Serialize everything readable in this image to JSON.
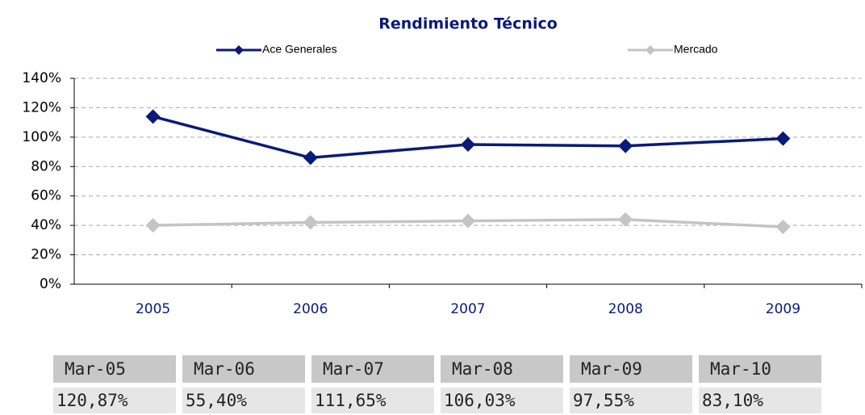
{
  "chart_data": {
    "type": "line",
    "title": "Rendimiento Técnico",
    "categories": [
      "2005",
      "2006",
      "2007",
      "2008",
      "2009"
    ],
    "series": [
      {
        "name": "Ace Generales",
        "color": "#0a1a7a",
        "values": [
          114,
          86,
          95,
          94,
          99
        ]
      },
      {
        "name": "Mercado",
        "color": "#c4c4c4",
        "values": [
          40,
          42,
          43,
          44,
          39
        ]
      }
    ],
    "ylim": [
      0,
      140
    ],
    "yticks": [
      {
        "value": 0,
        "label": "0%"
      },
      {
        "value": 20,
        "label": "20%"
      },
      {
        "value": 40,
        "label": "40%"
      },
      {
        "value": 60,
        "label": "60%"
      },
      {
        "value": 80,
        "label": "80%"
      },
      {
        "value": 100,
        "label": "100%"
      },
      {
        "value": 120,
        "label": "120%"
      },
      {
        "value": 140,
        "label": "140%"
      }
    ],
    "grid": true,
    "legend": "top"
  },
  "table": {
    "header": [
      "Mar-05",
      "Mar-06",
      "Mar-07",
      "Mar-08",
      "Mar-09",
      "Mar-10"
    ],
    "rows": [
      [
        "120,87%",
        "55,40%",
        "111,65%",
        "106,03%",
        "97,55%",
        "83,10%"
      ]
    ]
  }
}
